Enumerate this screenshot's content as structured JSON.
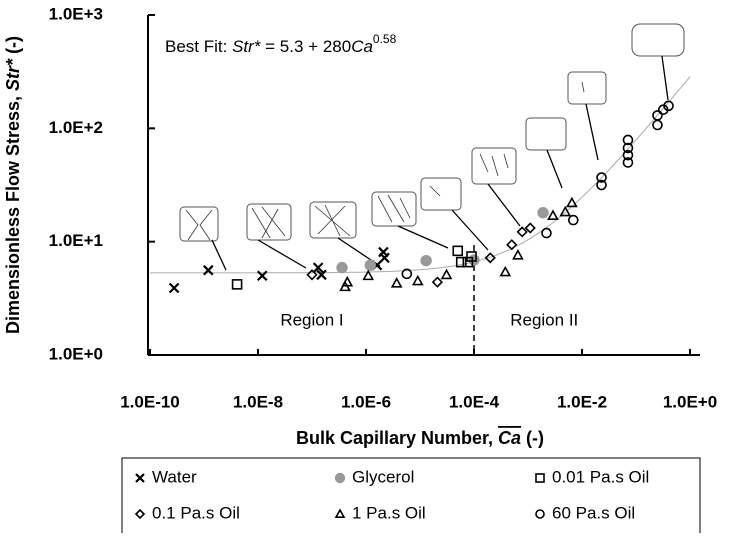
{
  "chart_data": {
    "type": "scatter",
    "x_label": [
      "Bulk Capillary Number, ",
      "Ca",
      " (-)"
    ],
    "y_label": [
      "Dimensionless Flow Stress, ",
      "Str*",
      " (-)"
    ],
    "xscale": "log",
    "yscale": "log",
    "xlim": [
      1e-10,
      1
    ],
    "ylim": [
      1,
      1000
    ],
    "xticks": [
      {
        "value": 1e-10,
        "label": "1.0E-10"
      },
      {
        "value": 1e-08,
        "label": "1.0E-8"
      },
      {
        "value": 1e-06,
        "label": "1.0E-6"
      },
      {
        "value": 0.0001,
        "label": "1.0E-4"
      },
      {
        "value": 0.01,
        "label": "1.0E-2"
      },
      {
        "value": 1,
        "label": "1.0E+0"
      }
    ],
    "yticks": [
      {
        "value": 1,
        "label": "1.0E+0"
      },
      {
        "value": 10,
        "label": "1.0E+1"
      },
      {
        "value": 100,
        "label": "1.0E+2"
      },
      {
        "value": 1000,
        "label": "1.0E+3"
      }
    ],
    "fit": {
      "prefix": "Best Fit: ",
      "variable": "Str*",
      "equals": " =  ",
      "intercept": 5.3,
      "plus": " + ",
      "coefficient": 280,
      "base": "Ca",
      "exponent": 0.58,
      "color": "#aaaaaa"
    },
    "regions": [
      {
        "label": "Region I",
        "x": 1e-07,
        "y": 2
      },
      {
        "label": "Region II",
        "x": 0.002,
        "y": 2
      }
    ],
    "region_boundary": 0.0001,
    "series": [
      {
        "name": "Water",
        "marker": "x",
        "color": "#000000",
        "x": [
          2.8e-10,
          1.2e-09,
          1.2e-08,
          1.3e-07,
          1.5e-07,
          1.6e-06,
          2.1e-06,
          2.2e-06
        ],
        "values": [
          3.9,
          5.6,
          5.0,
          5.9,
          5.1,
          6.2,
          8.1,
          7.2
        ]
      },
      {
        "name": "Glycerol",
        "marker": "filled-circle",
        "color": "#999999",
        "x": [
          3.6e-07,
          1.2e-06,
          1.3e-05,
          0.0001,
          0.0019
        ],
        "values": [
          5.9,
          6.2,
          6.8,
          6.9,
          18
        ]
      },
      {
        "name": "0.01 Pa.s Oil",
        "marker": "square",
        "color": "#000000",
        "x": [
          4.1e-09,
          5e-05,
          5.8e-05,
          7.7e-05,
          9e-05
        ],
        "values": [
          4.2,
          8.3,
          6.6,
          6.6,
          7.4
        ]
      },
      {
        "name": "0.1 Pa.s Oil",
        "marker": "diamond",
        "color": "#000000",
        "x": [
          1e-07,
          2.1e-05,
          0.0002,
          0.0005,
          0.00078,
          0.0011
        ],
        "values": [
          5.1,
          4.4,
          7.2,
          9.4,
          12.2,
          13.2
        ]
      },
      {
        "name": "1 Pa.s Oil",
        "marker": "triangle",
        "color": "#000000",
        "x": [
          4.1e-07,
          4.5e-07,
          1.1e-06,
          3.7e-06,
          9.1e-06,
          3.1e-05,
          0.00038,
          0.00065,
          0.0029,
          0.0049,
          0.0065
        ],
        "values": [
          4.0,
          4.4,
          5.0,
          4.3,
          4.5,
          5.1,
          5.4,
          7.6,
          17,
          18.3,
          22
        ]
      },
      {
        "name": "60 Pa.s Oil",
        "marker": "circle",
        "color": "#000000",
        "x": [
          5.7e-06,
          0.0022,
          0.0069,
          0.023,
          0.023,
          0.071,
          0.071,
          0.071,
          0.071,
          0.25,
          0.25,
          0.32,
          0.4
        ],
        "values": [
          5.2,
          11.9,
          15.5,
          36.8,
          31.6,
          67,
          58,
          50,
          79,
          107,
          130,
          146,
          158
        ]
      }
    ]
  }
}
